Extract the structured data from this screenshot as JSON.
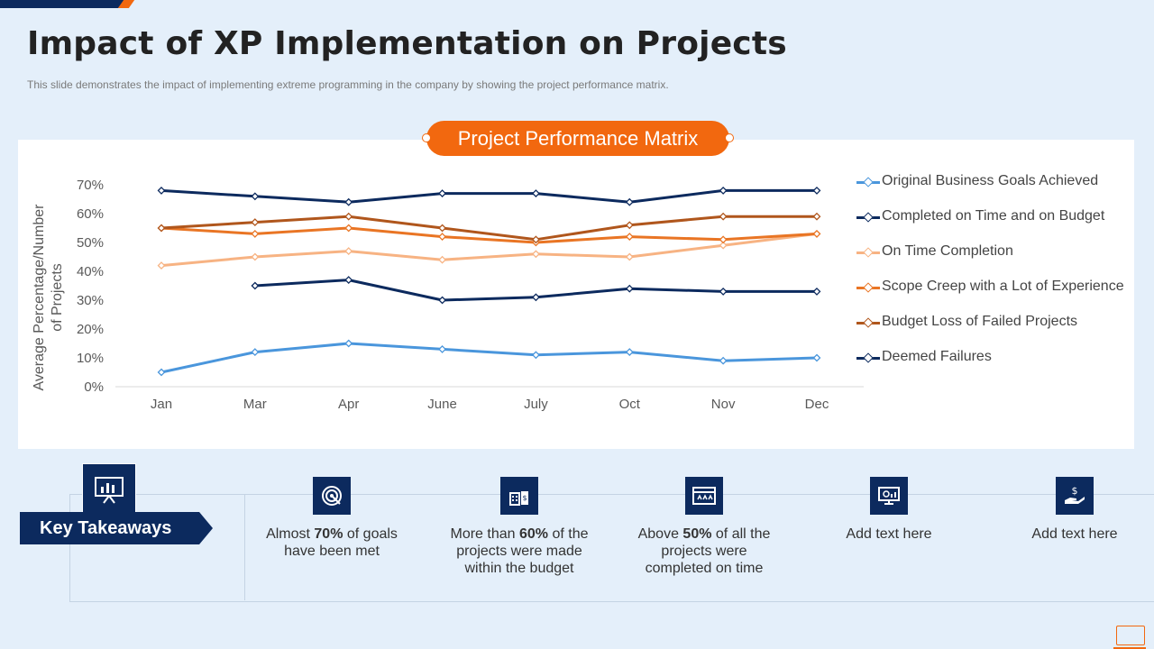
{
  "header": {
    "title": "Impact of XP Implementation on Projects",
    "subtitle": "This slide demonstrates the impact of implementing extreme programming in the company by showing the project performance matrix."
  },
  "chart_badge": "Project Performance Matrix",
  "chart_data": {
    "type": "line",
    "title": "Project Performance Matrix",
    "xlabel": "",
    "ylabel": "Average Percentage/Number of Projects",
    "categories": [
      "Jan",
      "Mar",
      "Apr",
      "June",
      "July",
      "Oct",
      "Nov",
      "Dec"
    ],
    "ylim": [
      0,
      70
    ],
    "yticks": [
      "0%",
      "10%",
      "20%",
      "30%",
      "40%",
      "50%",
      "60%",
      "70%"
    ],
    "ytick_values": [
      0,
      10,
      20,
      30,
      40,
      50,
      60,
      70
    ],
    "legend_position": "right",
    "series": [
      {
        "name": "Original Business Goals Achieved",
        "color": "#4a96dc",
        "values": [
          5,
          12,
          15,
          13,
          11,
          12,
          9,
          10
        ]
      },
      {
        "name": "Completed on Time and on Budget",
        "color": "#0c2a5e",
        "values": [
          68,
          66,
          64,
          67,
          67,
          64,
          68,
          68
        ]
      },
      {
        "name": " On Time Completion",
        "color": "#f7b383",
        "values": [
          42,
          45,
          47,
          44,
          46,
          45,
          49,
          53
        ]
      },
      {
        "name": "Scope Creep with a Lot of Experience",
        "color": "#e97524",
        "values": [
          55,
          53,
          55,
          52,
          50,
          52,
          51,
          53
        ]
      },
      {
        "name": "Budget Loss of Failed Projects",
        "color": "#b0561c",
        "values": [
          55,
          57,
          59,
          55,
          51,
          56,
          59,
          59
        ]
      },
      {
        "name": "Deemed Failures",
        "color": "#0c2a5e",
        "values": [
          null,
          35,
          37,
          30,
          31,
          34,
          33,
          33
        ]
      }
    ]
  },
  "key_takeaways": {
    "label": "Key Takeaways",
    "items": [
      {
        "icon": "target-icon",
        "pre": "Almost ",
        "bold": "70%",
        "post": " of goals have been met"
      },
      {
        "icon": "budget-icon",
        "pre": "More than ",
        "bold": "60%",
        "post": " of the projects were made within the budget"
      },
      {
        "icon": "calendar-icon",
        "pre": "Above ",
        "bold": "50%",
        "post": " of all the projects were completed on time"
      },
      {
        "icon": "monitor-analytics-icon",
        "pre": "Add text here",
        "bold": "",
        "post": ""
      },
      {
        "icon": "dollar-hand-icon",
        "pre": "Add text here",
        "bold": "",
        "post": ""
      }
    ]
  }
}
